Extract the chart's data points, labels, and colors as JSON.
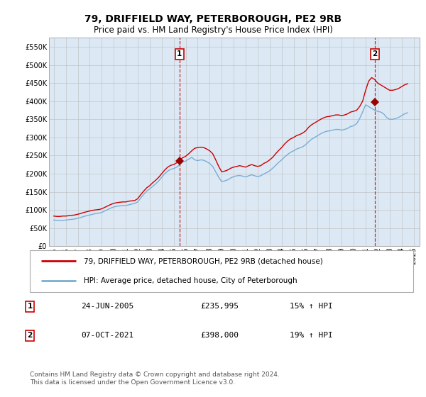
{
  "title": "79, DRIFFIELD WAY, PETERBOROUGH, PE2 9RB",
  "subtitle": "Price paid vs. HM Land Registry's House Price Index (HPI)",
  "background_color": "#dce9f5",
  "red_line_color": "#cc0000",
  "blue_line_color": "#7aadd4",
  "grid_color": "#bbbbbb",
  "ylim": [
    0,
    575000
  ],
  "yticks": [
    0,
    50000,
    100000,
    150000,
    200000,
    250000,
    300000,
    350000,
    400000,
    450000,
    500000,
    550000
  ],
  "ytick_labels": [
    "£0",
    "£50K",
    "£100K",
    "£150K",
    "£200K",
    "£250K",
    "£300K",
    "£350K",
    "£400K",
    "£450K",
    "£500K",
    "£550K"
  ],
  "xlim_start": 1994.6,
  "xlim_end": 2025.5,
  "xtick_years": [
    1995,
    1996,
    1997,
    1998,
    1999,
    2000,
    2001,
    2002,
    2003,
    2004,
    2005,
    2006,
    2007,
    2008,
    2009,
    2010,
    2011,
    2012,
    2013,
    2014,
    2015,
    2016,
    2017,
    2018,
    2019,
    2020,
    2021,
    2022,
    2023,
    2024,
    2025
  ],
  "sale1_x": 2005.48,
  "sale1_y": 235995,
  "sale1_label": "1",
  "sale2_x": 2021.77,
  "sale2_y": 398000,
  "sale2_label": "2",
  "legend_line1": "79, DRIFFIELD WAY, PETERBOROUGH, PE2 9RB (detached house)",
  "legend_line2": "HPI: Average price, detached house, City of Peterborough",
  "annotation1_date": "24-JUN-2005",
  "annotation1_price": "£235,995",
  "annotation1_hpi": "15% ↑ HPI",
  "annotation2_date": "07-OCT-2021",
  "annotation2_price": "£398,000",
  "annotation2_hpi": "19% ↑ HPI",
  "footer": "Contains HM Land Registry data © Crown copyright and database right 2024.\nThis data is licensed under the Open Government Licence v3.0.",
  "hpi_red_data": {
    "years": [
      1995.0,
      1995.25,
      1995.5,
      1995.75,
      1996.0,
      1996.25,
      1996.5,
      1996.75,
      1997.0,
      1997.25,
      1997.5,
      1997.75,
      1998.0,
      1998.25,
      1998.5,
      1998.75,
      1999.0,
      1999.25,
      1999.5,
      1999.75,
      2000.0,
      2000.25,
      2000.5,
      2000.75,
      2001.0,
      2001.25,
      2001.5,
      2001.75,
      2002.0,
      2002.25,
      2002.5,
      2002.75,
      2003.0,
      2003.25,
      2003.5,
      2003.75,
      2004.0,
      2004.25,
      2004.5,
      2004.75,
      2005.0,
      2005.25,
      2005.5,
      2005.75,
      2006.0,
      2006.25,
      2006.5,
      2006.75,
      2007.0,
      2007.25,
      2007.5,
      2007.75,
      2008.0,
      2008.25,
      2008.5,
      2008.75,
      2009.0,
      2009.25,
      2009.5,
      2009.75,
      2010.0,
      2010.25,
      2010.5,
      2010.75,
      2011.0,
      2011.25,
      2011.5,
      2011.75,
      2012.0,
      2012.25,
      2012.5,
      2012.75,
      2013.0,
      2013.25,
      2013.5,
      2013.75,
      2014.0,
      2014.25,
      2014.5,
      2014.75,
      2015.0,
      2015.25,
      2015.5,
      2015.75,
      2016.0,
      2016.25,
      2016.5,
      2016.75,
      2017.0,
      2017.25,
      2017.5,
      2017.75,
      2018.0,
      2018.25,
      2018.5,
      2018.75,
      2019.0,
      2019.25,
      2019.5,
      2019.75,
      2020.0,
      2020.25,
      2020.5,
      2020.75,
      2021.0,
      2021.25,
      2021.5,
      2021.75,
      2022.0,
      2022.25,
      2022.5,
      2022.75,
      2023.0,
      2023.25,
      2023.5,
      2023.75,
      2024.0,
      2024.25,
      2024.5
    ],
    "values": [
      83000,
      82000,
      82000,
      83000,
      83000,
      84000,
      85000,
      86000,
      88000,
      90000,
      93000,
      95000,
      97000,
      99000,
      100000,
      101000,
      103000,
      107000,
      111000,
      115000,
      118000,
      120000,
      121000,
      122000,
      122000,
      124000,
      125000,
      126000,
      131000,
      142000,
      152000,
      161000,
      167000,
      175000,
      182000,
      190000,
      200000,
      210000,
      218000,
      223000,
      225000,
      230000,
      238000,
      244000,
      248000,
      255000,
      263000,
      270000,
      272000,
      273000,
      272000,
      268000,
      263000,
      255000,
      238000,
      220000,
      205000,
      207000,
      210000,
      215000,
      218000,
      220000,
      222000,
      220000,
      218000,
      222000,
      225000,
      222000,
      220000,
      222000,
      228000,
      232000,
      238000,
      245000,
      255000,
      264000,
      272000,
      282000,
      290000,
      296000,
      300000,
      305000,
      308000,
      312000,
      318000,
      328000,
      335000,
      340000,
      345000,
      350000,
      354000,
      357000,
      358000,
      360000,
      362000,
      362000,
      360000,
      362000,
      365000,
      370000,
      372000,
      375000,
      385000,
      400000,
      430000,
      455000,
      465000,
      460000,
      450000,
      445000,
      440000,
      435000,
      430000,
      430000,
      432000,
      435000,
      440000,
      445000,
      448000
    ]
  },
  "hpi_blue_data": {
    "years": [
      1995.0,
      1995.25,
      1995.5,
      1995.75,
      1996.0,
      1996.25,
      1996.5,
      1996.75,
      1997.0,
      1997.25,
      1997.5,
      1997.75,
      1998.0,
      1998.25,
      1998.5,
      1998.75,
      1999.0,
      1999.25,
      1999.5,
      1999.75,
      2000.0,
      2000.25,
      2000.5,
      2000.75,
      2001.0,
      2001.25,
      2001.5,
      2001.75,
      2002.0,
      2002.25,
      2002.5,
      2002.75,
      2003.0,
      2003.25,
      2003.5,
      2003.75,
      2004.0,
      2004.25,
      2004.5,
      2004.75,
      2005.0,
      2005.25,
      2005.5,
      2005.75,
      2006.0,
      2006.25,
      2006.5,
      2006.75,
      2007.0,
      2007.25,
      2007.5,
      2007.75,
      2008.0,
      2008.25,
      2008.5,
      2008.75,
      2009.0,
      2009.25,
      2009.5,
      2009.75,
      2010.0,
      2010.25,
      2010.5,
      2010.75,
      2011.0,
      2011.25,
      2011.5,
      2011.75,
      2012.0,
      2012.25,
      2012.5,
      2012.75,
      2013.0,
      2013.25,
      2013.5,
      2013.75,
      2014.0,
      2014.25,
      2014.5,
      2014.75,
      2015.0,
      2015.25,
      2015.5,
      2015.75,
      2016.0,
      2016.25,
      2016.5,
      2016.75,
      2017.0,
      2017.25,
      2017.5,
      2017.75,
      2018.0,
      2018.25,
      2018.5,
      2018.75,
      2019.0,
      2019.25,
      2019.5,
      2019.75,
      2020.0,
      2020.25,
      2020.5,
      2020.75,
      2021.0,
      2021.25,
      2021.5,
      2021.75,
      2022.0,
      2022.25,
      2022.5,
      2022.75,
      2023.0,
      2023.25,
      2023.5,
      2023.75,
      2024.0,
      2024.25,
      2024.5
    ],
    "values": [
      72000,
      71000,
      71000,
      71000,
      72000,
      73000,
      74000,
      75000,
      77000,
      79000,
      82000,
      84000,
      86000,
      88000,
      90000,
      91000,
      93000,
      97000,
      101000,
      105000,
      108000,
      110000,
      111000,
      112000,
      112000,
      114000,
      116000,
      118000,
      122000,
      133000,
      143000,
      152000,
      158000,
      165000,
      172000,
      180000,
      190000,
      200000,
      207000,
      212000,
      214000,
      218000,
      225000,
      232000,
      235000,
      240000,
      245000,
      238000,
      236000,
      238000,
      237000,
      233000,
      228000,
      220000,
      205000,
      190000,
      178000,
      180000,
      183000,
      188000,
      192000,
      194000,
      195000,
      193000,
      191000,
      194000,
      197000,
      194000,
      192000,
      194000,
      199000,
      203000,
      208000,
      215000,
      223000,
      231000,
      238000,
      246000,
      253000,
      259000,
      263000,
      268000,
      271000,
      274000,
      280000,
      288000,
      295000,
      300000,
      305000,
      310000,
      314000,
      317000,
      318000,
      320000,
      322000,
      322000,
      320000,
      322000,
      325000,
      330000,
      332000,
      338000,
      352000,
      370000,
      390000,
      385000,
      380000,
      375000,
      372000,
      370000,
      365000,
      355000,
      350000,
      350000,
      352000,
      355000,
      360000,
      365000,
      368000
    ]
  }
}
